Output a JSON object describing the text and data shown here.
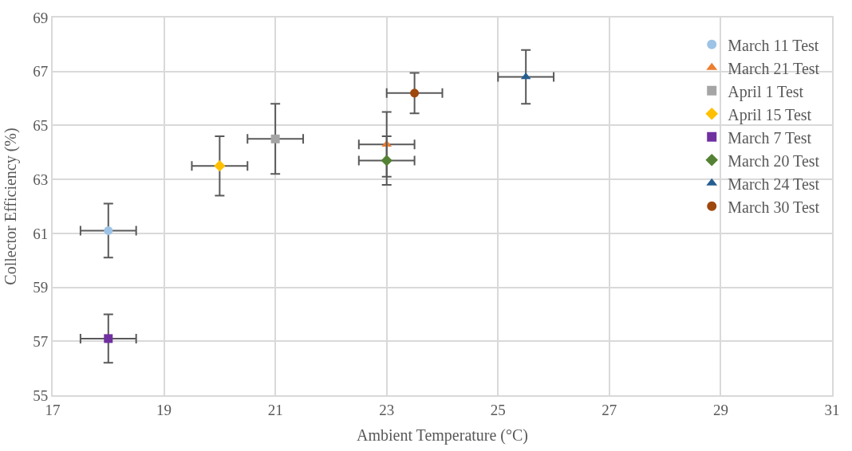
{
  "chart_data": {
    "type": "scatter",
    "xlabel": "Ambient Temperature (°C)",
    "ylabel": "Collector Efficiency (%)",
    "xlim": [
      17,
      31
    ],
    "xticks": [
      17,
      19,
      21,
      23,
      25,
      27,
      29,
      31
    ],
    "ylim": [
      55,
      69
    ],
    "yticks": [
      55,
      57,
      59,
      61,
      63,
      65,
      67,
      69
    ],
    "grid": true,
    "legend": "top right",
    "series": [
      {
        "name": "March 11 Test",
        "color": "#9dc3e6",
        "marker": "circle",
        "x": [
          18
        ],
        "values": [
          61.1
        ],
        "errors": [
          1.0
        ],
        "xerrors": [
          0.5
        ]
      },
      {
        "name": "March 21 Test",
        "color": "#ed7d31",
        "marker": "triangle",
        "x": [
          23
        ],
        "values": [
          64.3
        ],
        "errors": [
          1.2
        ],
        "xerrors": [
          0.5
        ]
      },
      {
        "name": "April 1 Test",
        "color": "#a5a5a5",
        "marker": "square",
        "x": [
          21
        ],
        "values": [
          64.5
        ],
        "errors": [
          1.3
        ],
        "xerrors": [
          0.5
        ]
      },
      {
        "name": "April 15 Test",
        "color": "#ffc000",
        "marker": "diamond",
        "x": [
          20
        ],
        "values": [
          63.5
        ],
        "errors": [
          1.1
        ],
        "xerrors": [
          0.5
        ]
      },
      {
        "name": "March 7 Test",
        "color": "#7030a0",
        "marker": "square",
        "x": [
          18
        ],
        "values": [
          57.1
        ],
        "errors": [
          0.9
        ],
        "xerrors": [
          0.5
        ]
      },
      {
        "name": "March 20 Test",
        "color": "#548235",
        "marker": "diamond",
        "x": [
          23
        ],
        "values": [
          63.7
        ],
        "errors": [
          0.9
        ],
        "xerrors": [
          0.5
        ]
      },
      {
        "name": "March 24 Test",
        "color": "#255e91",
        "marker": "triangle",
        "x": [
          25.5
        ],
        "values": [
          66.8
        ],
        "errors": [
          1.0
        ],
        "xerrors": [
          0.5
        ]
      },
      {
        "name": "March 30 Test",
        "color": "#9e480e",
        "marker": "circle",
        "x": [
          23.5
        ],
        "values": [
          66.2
        ],
        "errors": [
          0.75
        ],
        "xerrors": [
          0.5
        ]
      }
    ]
  }
}
